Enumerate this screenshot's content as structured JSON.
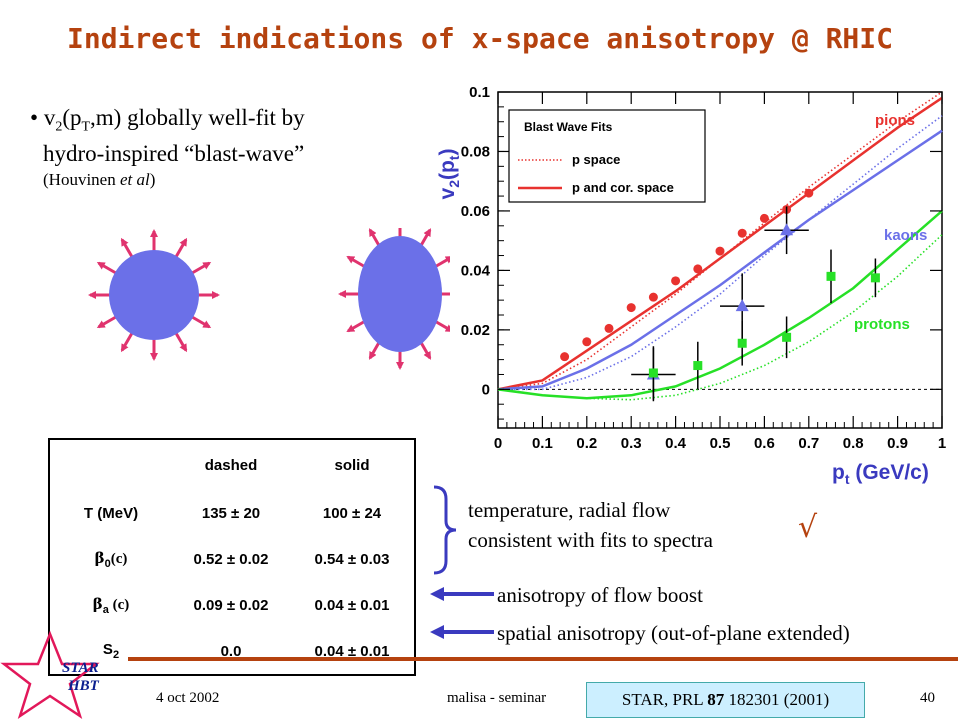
{
  "title": "Indirect indications of x-space anisotropy @ RHIC",
  "bullet": {
    "marker": "•",
    "v": "v",
    "v_sub": "2",
    "open": "(p",
    "pt_sub": "T",
    "rest_line1": ",m) globally well-fit by",
    "line2": "hydro-inspired “blast-wave”",
    "line3": "(Houvinen et al)"
  },
  "chart_data": {
    "type": "scatter",
    "ylabel": "v2(pt)",
    "xlabel": "pt (GeV/c)",
    "xlim": [
      0,
      1
    ],
    "ylim": [
      -0.013,
      0.1
    ],
    "x_ticks": [
      "0",
      "0.1",
      "0.2",
      "0.3",
      "0.4",
      "0.5",
      "0.6",
      "0.7",
      "0.8",
      "0.9",
      "1"
    ],
    "y_ticks": [
      "0",
      "0.02",
      "0.04",
      "0.06",
      "0.08",
      "0.1"
    ],
    "legend": {
      "title": "Blast Wave Fits",
      "entries": [
        "p space",
        "p and cor. space"
      ],
      "placement": "top-left"
    },
    "annotations": {
      "pions": "pions",
      "kaons": "kaons",
      "protons": "protons"
    },
    "series": [
      {
        "name": "pions",
        "marker": "circle",
        "color": "#e8322f",
        "x": [
          0.15,
          0.2,
          0.25,
          0.3,
          0.35,
          0.4,
          0.45,
          0.5,
          0.55,
          0.6,
          0.65,
          0.7
        ],
        "y": [
          0.011,
          0.016,
          0.0205,
          0.0275,
          0.031,
          0.0365,
          0.0405,
          0.0465,
          0.0525,
          0.0575,
          0.0605,
          0.066
        ],
        "yerr": [
          0.0005,
          0.0005,
          0.0005,
          0.0005,
          0.0005,
          0.0005,
          0.0005,
          0.0005,
          0.0005,
          0.0005,
          0.0005,
          0.0005
        ]
      },
      {
        "name": "kaons",
        "marker": "triangle",
        "color": "#6b70e8",
        "x": [
          0.35,
          0.55,
          0.65
        ],
        "y": [
          0.005,
          0.028,
          0.0535
        ],
        "yerr": [
          0.009,
          0.011,
          0.008
        ],
        "xerr": [
          0.05,
          0.05,
          0.05
        ]
      },
      {
        "name": "protons",
        "marker": "square",
        "color": "#27e027",
        "x": [
          0.35,
          0.45,
          0.55,
          0.65,
          0.75,
          0.85
        ],
        "y": [
          0.0055,
          0.008,
          0.0155,
          0.0175,
          0.038,
          0.0375
        ],
        "yerr": [
          0.009,
          0.008,
          0.0075,
          0.007,
          0.009,
          0.0065
        ]
      }
    ],
    "curves": [
      {
        "label": "pions p and cor. space",
        "style": "solid",
        "color": "#e8322f",
        "x": [
          0,
          0.1,
          0.2,
          0.3,
          0.4,
          0.5,
          0.6,
          0.7,
          0.8,
          0.9,
          1.0
        ],
        "y": [
          0,
          0.003,
          0.013,
          0.023,
          0.033,
          0.044,
          0.055,
          0.066,
          0.077,
          0.088,
          0.098
        ]
      },
      {
        "label": "pions p space",
        "style": "dotted",
        "color": "#e8322f",
        "x": [
          0,
          0.1,
          0.2,
          0.3,
          0.4,
          0.5,
          0.6,
          0.7,
          0.8,
          0.9,
          1.0
        ],
        "y": [
          0,
          0.002,
          0.01,
          0.021,
          0.032,
          0.044,
          0.056,
          0.068,
          0.079,
          0.09,
          0.1
        ]
      },
      {
        "label": "kaons p and cor. space",
        "style": "solid",
        "color": "#6b70e8",
        "x": [
          0,
          0.1,
          0.2,
          0.3,
          0.4,
          0.5,
          0.6,
          0.7,
          0.8,
          0.9,
          1.0
        ],
        "y": [
          0,
          0.001,
          0.007,
          0.015,
          0.025,
          0.035,
          0.046,
          0.057,
          0.067,
          0.077,
          0.087
        ]
      },
      {
        "label": "kaons p space",
        "style": "dotted",
        "color": "#6b70e8",
        "x": [
          0,
          0.1,
          0.2,
          0.3,
          0.4,
          0.5,
          0.6,
          0.7,
          0.8,
          0.9,
          1.0
        ],
        "y": [
          0,
          0.0,
          0.004,
          0.011,
          0.021,
          0.032,
          0.045,
          0.057,
          0.069,
          0.081,
          0.092
        ]
      },
      {
        "label": "protons p and cor. space",
        "style": "solid",
        "color": "#27e027",
        "x": [
          0,
          0.1,
          0.2,
          0.3,
          0.4,
          0.5,
          0.6,
          0.7,
          0.8,
          0.9,
          1.0
        ],
        "y": [
          0,
          -0.002,
          -0.003,
          -0.002,
          0.001,
          0.007,
          0.015,
          0.024,
          0.034,
          0.047,
          0.06
        ]
      },
      {
        "label": "protons p space",
        "style": "dotted",
        "color": "#27e027",
        "x": [
          0,
          0.1,
          0.2,
          0.3,
          0.4,
          0.5,
          0.6,
          0.7,
          0.8,
          0.9,
          1.0
        ],
        "y": [
          0,
          -0.002,
          -0.003,
          -0.0035,
          -0.002,
          0.002,
          0.008,
          0.016,
          0.026,
          0.038,
          0.052
        ]
      }
    ]
  },
  "table": {
    "header": [
      "",
      "dashed",
      "solid"
    ],
    "rows": [
      {
        "label": "T (MeV)",
        "dashed": "135 ± 20",
        "solid": "100 ± 24"
      },
      {
        "label": "β0(c)",
        "dashed": "0.52 ± 0.02",
        "solid": "0.54 ± 0.03"
      },
      {
        "label": "βa (c)",
        "dashed": "0.09 ± 0.02",
        "solid": "0.04 ± 0.01"
      },
      {
        "label": "S2",
        "dashed": "0.0",
        "solid": "0.04 ± 0.01"
      }
    ],
    "row_labels": {
      "beta0": "β",
      "beta0_sub": "0",
      "beta0_rest": "(c)",
      "betaa": "β",
      "betaa_sub": "a",
      "betaa_rest": " (c)",
      "s2": "S",
      "s2_sub": "2"
    }
  },
  "notes": {
    "brace_text_1": "temperature, radial flow",
    "brace_text_2": "consistent with fits to spectra",
    "check": "√",
    "arrow1": "anisotropy of flow boost",
    "arrow2": "spatial anisotropy (out-of-plane extended)"
  },
  "footer": {
    "date": "4 oct 2002",
    "author": "malisa - seminar",
    "ref_pre": "STAR, PRL ",
    "ref_bold": "87",
    "ref_post": " 182301 (2001)",
    "page": "40",
    "logo_1": "STAR",
    "logo_2": "HBT"
  },
  "colors": {
    "title": "#b5420f",
    "blob": "#6b70e8",
    "arrow_pink": "#e0336e",
    "arrow_blue": "#3a3abf",
    "star": "#e2185a"
  }
}
